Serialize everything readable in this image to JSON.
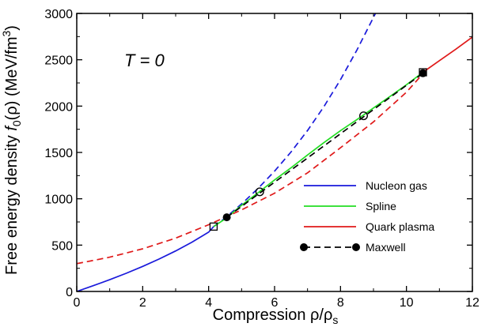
{
  "chart_data": {
    "type": "line",
    "annotation": "T = 0",
    "xlabel": "Compression ρ/ρ",
    "xlabel_sub": "s",
    "ylabel_main": "Free energy density",
    "ylabel_f": "f",
    "ylabel_f_sub": "0",
    "ylabel_arg": "(ρ)",
    "ylabel_unit": "(MeV/fm",
    "ylabel_unit_sup": "3",
    "ylabel_unit_close": ")",
    "xlim": [
      0,
      12
    ],
    "ylim": [
      0,
      3000
    ],
    "x_ticks": [
      0,
      2,
      4,
      6,
      8,
      10,
      12
    ],
    "y_ticks": [
      0,
      500,
      1000,
      1500,
      2000,
      2500,
      3000
    ],
    "x_tick_labels": [
      "0",
      "2",
      "4",
      "6",
      "8",
      "10",
      "12"
    ],
    "y_tick_labels": [
      "0",
      "500",
      "1000",
      "1500",
      "2000",
      "2500",
      "3000"
    ],
    "legend_position": "lower-right",
    "series": [
      {
        "name": "Nucleon gas",
        "color": "#1a1adb",
        "style": "solid",
        "x": [
          0,
          0.5,
          1,
          1.5,
          2,
          2.5,
          3,
          3.5,
          4,
          4.15
        ],
        "y": [
          0,
          62,
          127,
          196,
          270,
          350,
          437,
          533,
          640,
          700
        ]
      },
      {
        "name": "Nucleon gas (extrapolated)",
        "color": "#1a1adb",
        "style": "dashed",
        "x": [
          4.15,
          4.5,
          5,
          5.5,
          6,
          6.5,
          7,
          7.5,
          8,
          8.5,
          9.06
        ],
        "y": [
          700,
          793,
          944,
          1112,
          1298,
          1505,
          1737,
          1996,
          2285,
          2607,
          3000
        ]
      },
      {
        "name": "Quark plasma (extrapolated)",
        "color": "#e01a1a",
        "style": "dashed",
        "x": [
          0,
          1,
          2,
          3,
          4,
          5,
          6,
          7,
          8,
          9,
          10,
          10.5
        ],
        "y": [
          300,
          370,
          460,
          575,
          720,
          880,
          1060,
          1280,
          1550,
          1830,
          2150,
          2350
        ]
      },
      {
        "name": "Quark plasma",
        "color": "#e01a1a",
        "style": "solid",
        "x": [
          10.5,
          11,
          11.5,
          12
        ],
        "y": [
          2365,
          2490,
          2615,
          2745
        ]
      },
      {
        "name": "Spline",
        "color": "#22dd22",
        "style": "solid",
        "x": [
          4.15,
          4.5,
          5,
          5.5,
          6,
          6.5,
          7,
          7.5,
          8,
          8.5,
          9,
          9.5,
          10,
          10.5
        ],
        "y": [
          700,
          782,
          930,
          1065,
          1203,
          1335,
          1473,
          1607,
          1735,
          1855,
          1980,
          2103,
          2230,
          2365
        ]
      },
      {
        "name": "Maxwell",
        "color": "#000000",
        "style": "dashed",
        "x": [
          4.55,
          10.5
        ],
        "y": [
          800,
          2355
        ]
      }
    ],
    "markers": {
      "open_squares": [
        {
          "x": 4.15,
          "y": 700
        },
        {
          "x": 10.5,
          "y": 2365
        }
      ],
      "open_circles": [
        {
          "x": 5.55,
          "y": 1075
        },
        {
          "x": 8.7,
          "y": 1895
        }
      ],
      "filled_circles": [
        {
          "x": 4.55,
          "y": 800
        },
        {
          "x": 10.5,
          "y": 2355
        }
      ]
    },
    "legend": [
      {
        "label": "Nucleon gas",
        "color": "#1a1adb",
        "style": "solid",
        "marker": "none"
      },
      {
        "label": "Spline",
        "color": "#22dd22",
        "style": "solid",
        "marker": "none"
      },
      {
        "label": "Quark plasma",
        "color": "#e01a1a",
        "style": "solid",
        "marker": "none"
      },
      {
        "label": "Maxwell",
        "color": "#000000",
        "style": "dashed",
        "marker": "filled-circle"
      }
    ]
  }
}
